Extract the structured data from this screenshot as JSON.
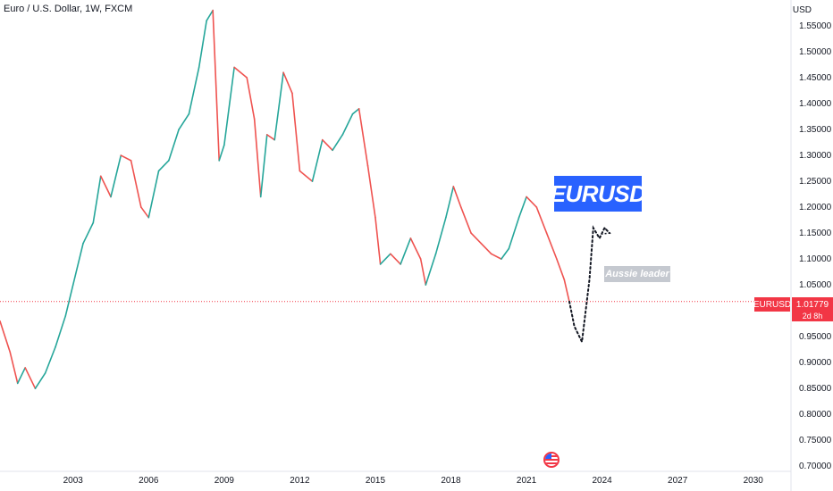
{
  "header": {
    "symbol_title": "Euro / U.S. Dollar, 1W, FXCM",
    "currency": "USD"
  },
  "annotations": {
    "big_label": "EURUSD",
    "small_label": "Aussie leader"
  },
  "price_marker": {
    "symbol": "EURUSD",
    "value": "1.01779",
    "countdown": "2d 8h"
  },
  "icons": {
    "event": "us-flag-icon"
  },
  "colors": {
    "up": "#26a69a",
    "down": "#ef5350",
    "accent": "#2962ff",
    "price_line": "#f23645",
    "projection": "#131722"
  },
  "chart_data": {
    "type": "line",
    "title": "Euro / U.S. Dollar, 1W, FXCM",
    "xlabel": "",
    "ylabel": "USD",
    "x_ticks": [
      2003,
      2006,
      2009,
      2012,
      2015,
      2018,
      2021,
      2024,
      2027,
      2030
    ],
    "y_ticks": [
      0.7,
      0.75,
      0.8,
      0.85,
      0.9,
      0.95,
      1.0,
      1.05,
      1.1,
      1.15,
      1.2,
      1.25,
      1.3,
      1.35,
      1.4,
      1.45,
      1.5,
      1.55
    ],
    "y_tick_labels": [
      "0.70000",
      "0.75000",
      "0.80000",
      "0.85000",
      "0.90000",
      "0.95000",
      "1.00000",
      "1.05000",
      "1.10000",
      "1.15000",
      "1.20000",
      "1.25000",
      "1.30000",
      "1.35000",
      "1.40000",
      "1.45000",
      "1.50000",
      "1.55000"
    ],
    "xlim": [
      2000.1,
      2031.5
    ],
    "ylim": [
      0.69,
      1.6
    ],
    "grid": false,
    "current_price": 1.01779,
    "series": [
      {
        "role": "price",
        "x": [
          2000.1,
          2000.5,
          2000.8,
          2001.1,
          2001.5,
          2001.9,
          2002.3,
          2002.7,
          2003.0,
          2003.4,
          2003.8,
          2004.1,
          2004.5,
          2004.9,
          2005.3,
          2005.7,
          2006.0,
          2006.4,
          2006.8,
          2007.2,
          2007.6,
          2008.0,
          2008.3,
          2008.55,
          2008.8,
          2009.0,
          2009.4,
          2009.9,
          2010.2,
          2010.45,
          2010.7,
          2011.0,
          2011.35,
          2011.7,
          2012.0,
          2012.5,
          2012.9,
          2013.3,
          2013.7,
          2014.1,
          2014.35,
          2014.7,
          2015.0,
          2015.2,
          2015.6,
          2016.0,
          2016.4,
          2016.8,
          2017.0,
          2017.4,
          2017.8,
          2018.1,
          2018.4,
          2018.8,
          2019.2,
          2019.6,
          2020.0,
          2020.3,
          2020.7,
          2021.0,
          2021.4,
          2021.8,
          2022.2,
          2022.5,
          2022.7
        ],
        "y": [
          0.98,
          0.92,
          0.86,
          0.89,
          0.85,
          0.88,
          0.93,
          0.99,
          1.05,
          1.13,
          1.17,
          1.26,
          1.22,
          1.3,
          1.29,
          1.2,
          1.18,
          1.27,
          1.29,
          1.35,
          1.38,
          1.47,
          1.56,
          1.58,
          1.29,
          1.32,
          1.47,
          1.45,
          1.37,
          1.22,
          1.34,
          1.33,
          1.46,
          1.42,
          1.27,
          1.25,
          1.33,
          1.31,
          1.34,
          1.38,
          1.39,
          1.28,
          1.18,
          1.09,
          1.11,
          1.09,
          1.14,
          1.1,
          1.05,
          1.11,
          1.18,
          1.24,
          1.2,
          1.15,
          1.13,
          1.11,
          1.1,
          1.12,
          1.18,
          1.22,
          1.2,
          1.15,
          1.1,
          1.06,
          1.0178
        ]
      },
      {
        "role": "projection",
        "x": [
          2022.7,
          2022.9,
          2023.2,
          2023.5,
          2023.65,
          2023.9,
          2024.1,
          2024.3
        ],
        "y": [
          1.0178,
          0.97,
          0.94,
          1.06,
          1.16,
          1.14,
          1.16,
          1.15
        ]
      }
    ]
  }
}
